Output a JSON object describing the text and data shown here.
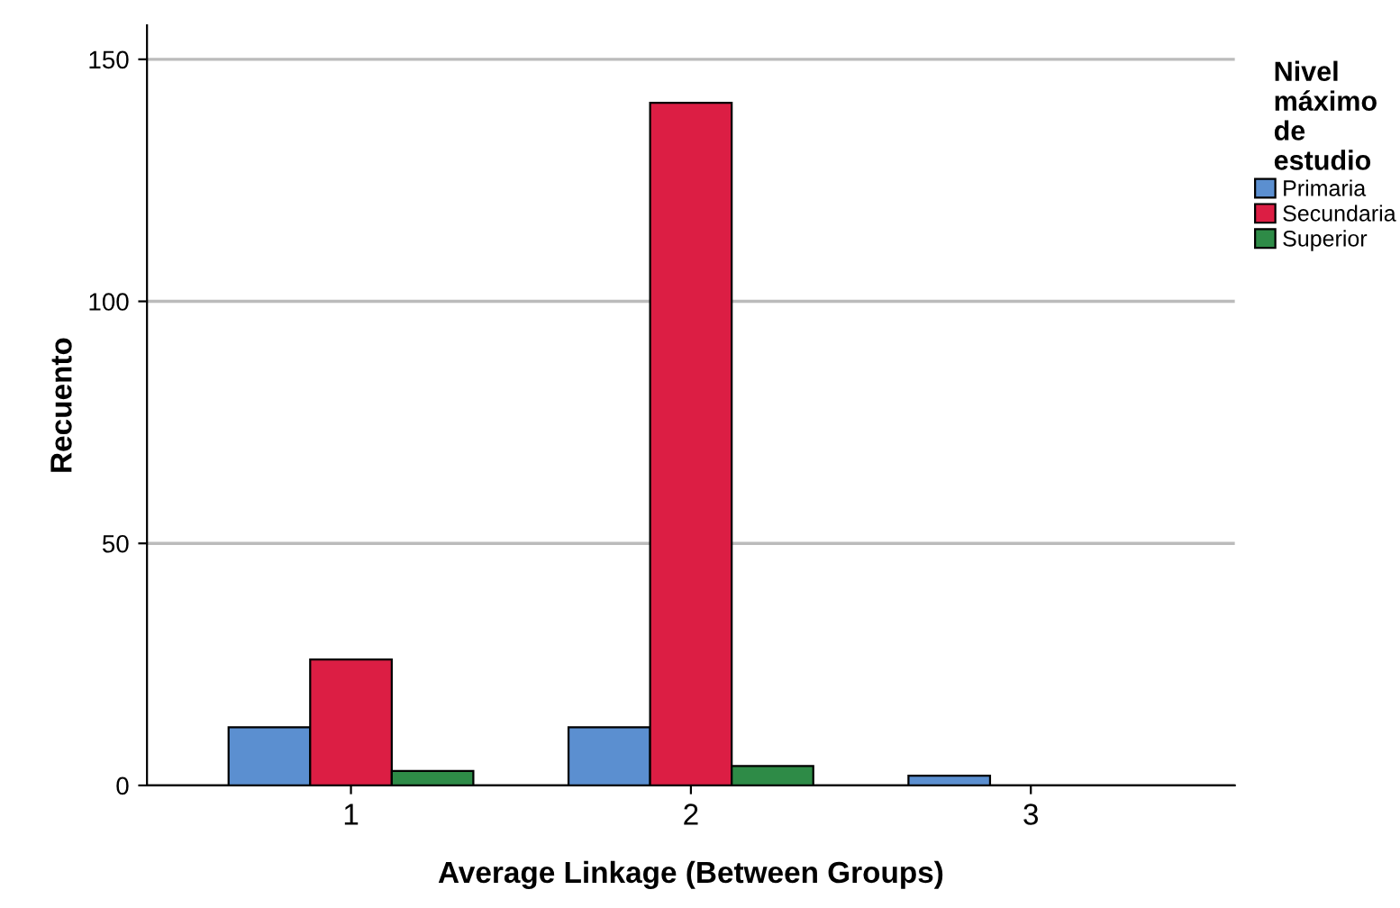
{
  "chart_data": {
    "type": "bar",
    "xlabel": "Average Linkage (Between Groups)",
    "ylabel": "Recuento",
    "legend_title": "Nivel máximo de estudio",
    "categories": [
      "1",
      "2",
      "3"
    ],
    "series": [
      {
        "name": "Primaria",
        "color": "#5b8fd0",
        "values": [
          12,
          12,
          2
        ]
      },
      {
        "name": "Secundaria",
        "color": "#dc1e44",
        "values": [
          26,
          141,
          null
        ]
      },
      {
        "name": "Superior",
        "color": "#2e8b47",
        "values": [
          3,
          4,
          null
        ]
      }
    ],
    "ylim": [
      0,
      157
    ],
    "yticks": [
      0,
      50,
      100,
      150
    ],
    "grid": "y",
    "legend": "top right"
  }
}
